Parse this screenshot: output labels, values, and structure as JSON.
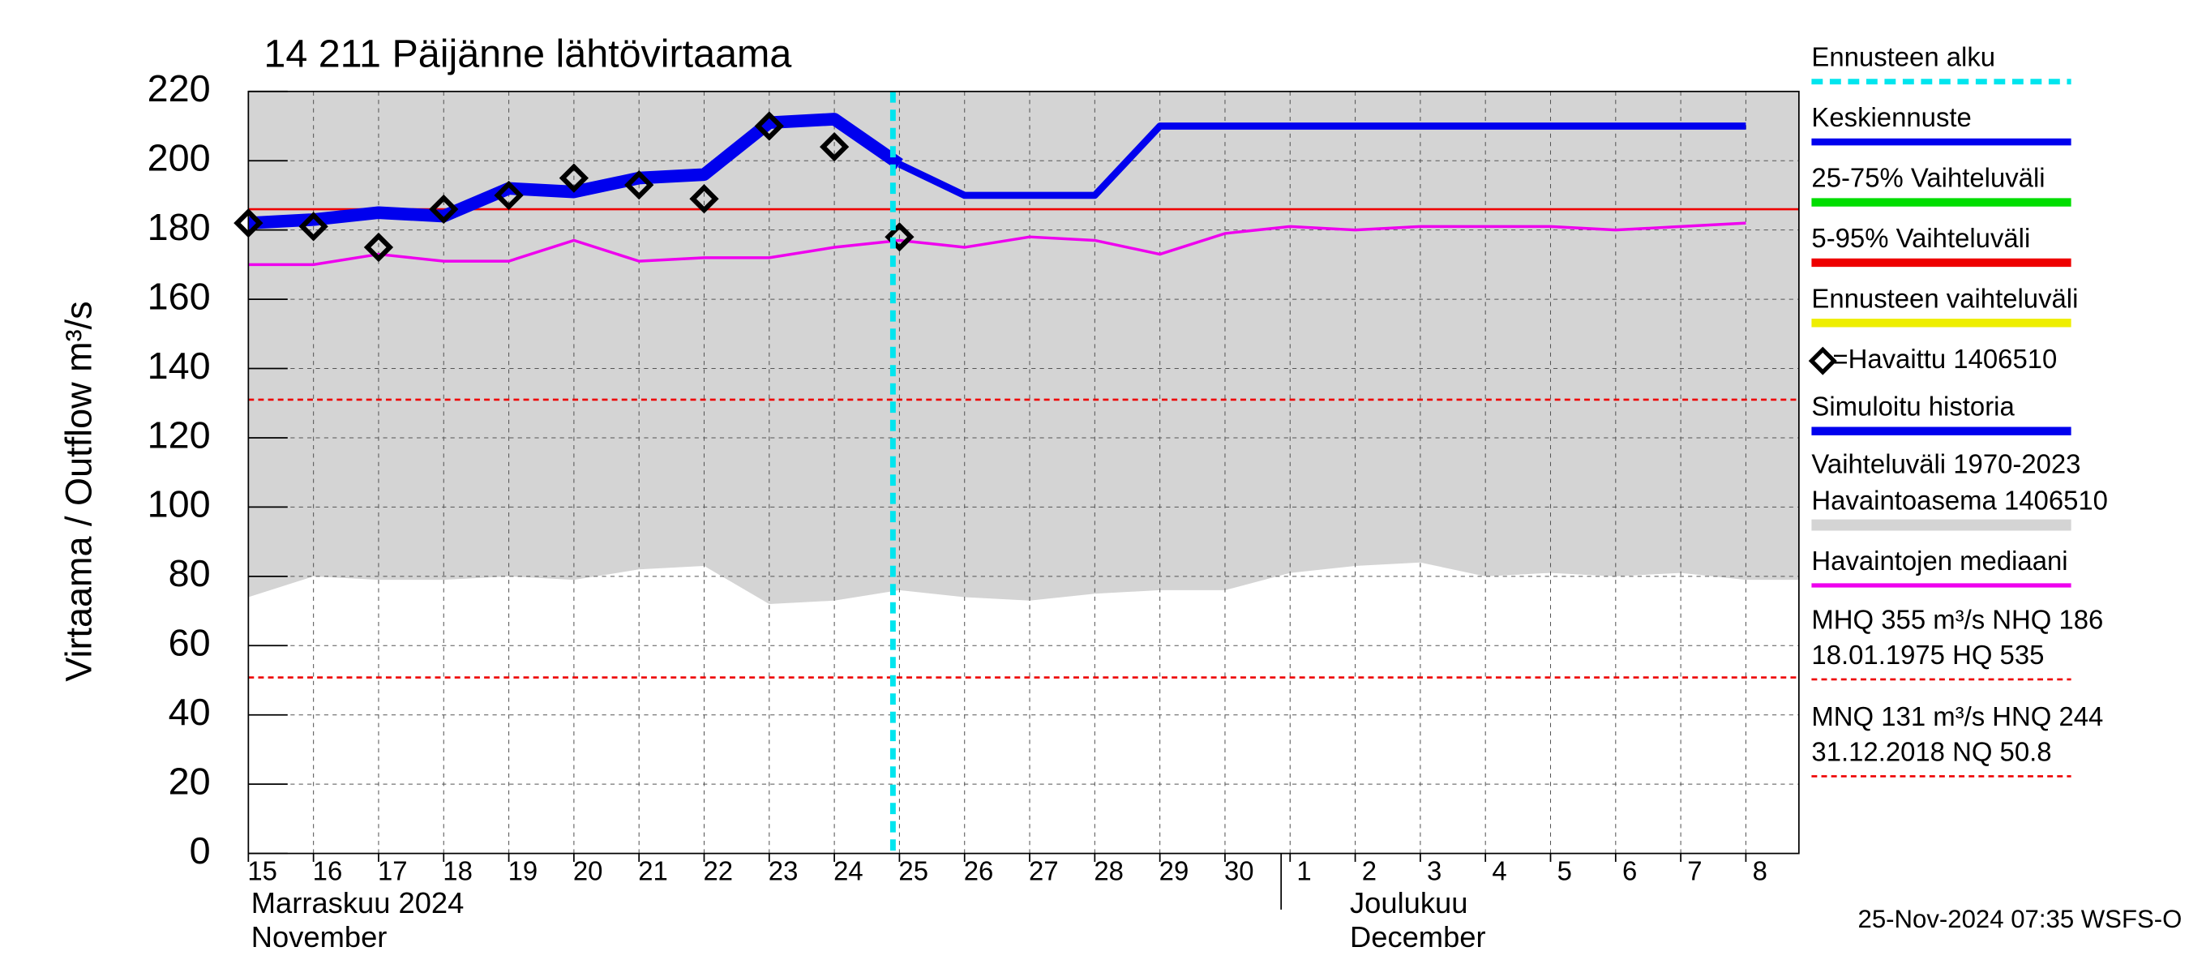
{
  "chart_data": {
    "type": "line",
    "title": "14 211 Päijänne lähtövirtaama",
    "y_label": "Virtaama / Outflow    m³/s",
    "categories": [
      "15",
      "16",
      "17",
      "18",
      "19",
      "20",
      "21",
      "22",
      "23",
      "24",
      "25",
      "26",
      "27",
      "28",
      "29",
      "30",
      "1",
      "2",
      "3",
      "4",
      "5",
      "6",
      "7",
      "8"
    ],
    "month_labels": [
      "Marraskuu 2024",
      "November",
      "Joulukuu",
      "December"
    ],
    "ylim": [
      0,
      220
    ],
    "yticks": [
      0,
      20,
      40,
      60,
      80,
      100,
      120,
      140,
      160,
      180,
      200,
      220
    ],
    "grid": true,
    "forecast_start": 9.9,
    "forecast_label": "Ennusteen alku",
    "forecast_color": "#00e5ee",
    "series": [
      {
        "name": "Vaihteluväli 1970-2023",
        "name2": " Havaintoasema 1406510",
        "kind": "band",
        "color": "#d4d4d4",
        "values": [
          74,
          80,
          79,
          79,
          80,
          79,
          82,
          83,
          72,
          73,
          76,
          74,
          73,
          75,
          76,
          76,
          81,
          83,
          84,
          80,
          81,
          80,
          81,
          79
        ]
      },
      {
        "name": "Havaintojen mediaani",
        "kind": "line",
        "color": "#ee00ee",
        "values": [
          170,
          170,
          173,
          171,
          171,
          177,
          171,
          172,
          172,
          175,
          177,
          175,
          178,
          177,
          173,
          179,
          181,
          180,
          181,
          181,
          181,
          180,
          181,
          182
        ]
      },
      {
        "name": "Simuloitu historia",
        "kind": "thick",
        "color": "#0000ee",
        "values": [
          182,
          183,
          185,
          184,
          192,
          191,
          195,
          196,
          211,
          212,
          199,
          null,
          null,
          null,
          null,
          null,
          null,
          null,
          null,
          null,
          null,
          null,
          null,
          null
        ]
      },
      {
        "name": "Keskiennuste",
        "kind": "line5",
        "color": "#0000ee",
        "values": [
          null,
          null,
          null,
          null,
          null,
          null,
          null,
          null,
          null,
          null,
          199,
          190,
          190,
          190,
          210,
          210,
          210,
          210,
          210,
          210,
          210,
          210,
          210,
          210
        ]
      },
      {
        "name": "=Havaittu 1406510",
        "kind": "marker",
        "color": "#000000",
        "values": [
          182,
          181,
          175,
          186,
          190,
          195,
          193,
          189,
          210,
          204,
          178,
          null,
          null,
          null,
          null,
          null,
          null,
          null,
          null,
          null,
          null,
          null,
          null,
          null
        ]
      }
    ],
    "legend_only": [
      {
        "name": "25-75% Vaihteluväli",
        "color": "#00dd00"
      },
      {
        "name": "5-95% Vaihteluväli",
        "color": "#ee0000"
      },
      {
        "name": "Ennusteen vaihteluväli",
        "color": "#eeee00"
      }
    ],
    "reference_lines": [
      {
        "value": 186,
        "style": "solid",
        "color": "#ee0000"
      },
      {
        "value": 131,
        "style": "dashed",
        "color": "#ee0000",
        "texts": [
          "MHQ  355 m³/s NHQ  186",
          "18.01.1975 HQ  535"
        ]
      },
      {
        "value": 50.8,
        "style": "dashed",
        "color": "#ee0000",
        "texts": [
          "MNQ  131 m³/s HNQ  244",
          "31.12.2018 NQ 50.8"
        ]
      }
    ],
    "footer": "25-Nov-2024 07:35 WSFS-O"
  }
}
